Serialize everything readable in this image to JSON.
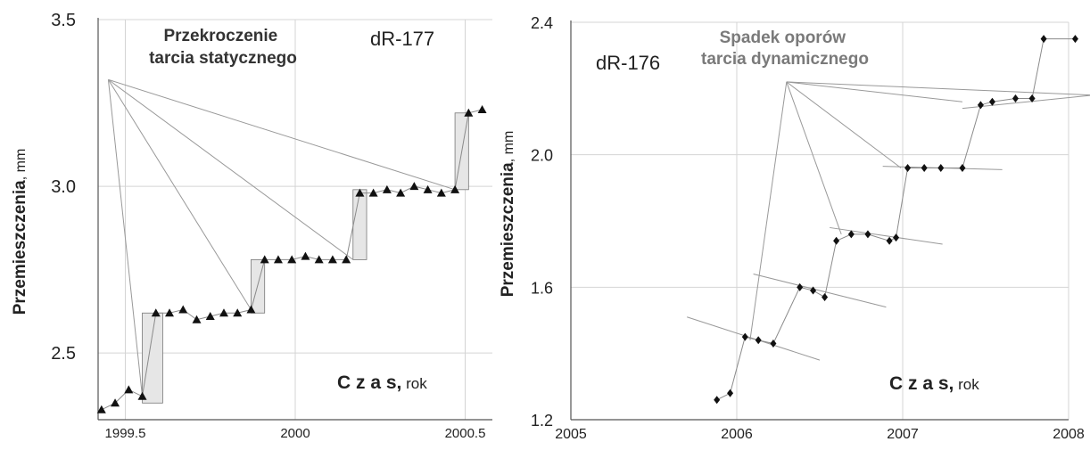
{
  "colors": {
    "grid": "#d4d4d4",
    "series": "#8a8a8a",
    "marker": "#111111",
    "band_fill": "#e6e6e6",
    "annotation_left": "#333333",
    "annotation_right": "#7a7a7a",
    "text": "#222222"
  },
  "chart_data": [
    {
      "type": "scatter",
      "id": "dR-177",
      "label": "dR-177",
      "ylabel_main": "Przemieszczenia",
      "ylabel_unit": ", mm",
      "xlabel_main": "C z a s,",
      "xlabel_unit": " rok",
      "annotation": [
        "Przekroczenie",
        "tarcia statycznego"
      ],
      "marker": "triangle",
      "xlim": [
        1999.42,
        2000.58
      ],
      "ylim": [
        2.3,
        3.5
      ],
      "xticks": [
        1999.5,
        2000,
        2000.5
      ],
      "xtick_labels": [
        "1999.5",
        "2000",
        "2000.5"
      ],
      "yticks": [
        2.5,
        3.0,
        3.5
      ],
      "ytick_labels": [
        "2.5",
        "3.0",
        "3.5"
      ],
      "grid": true,
      "annotation_origin": [
        1999.45,
        3.32
      ],
      "series": [
        {
          "x": [
            1999.43,
            1999.47,
            1999.51,
            1999.55,
            1999.59,
            1999.63,
            1999.67,
            1999.71,
            1999.75,
            1999.79,
            1999.83,
            1999.87,
            1999.91,
            1999.95,
            1999.99,
            2000.03,
            2000.07,
            2000.11,
            2000.15,
            2000.19,
            2000.23,
            2000.27,
            2000.31,
            2000.35,
            2000.39,
            2000.43,
            2000.47,
            2000.51,
            2000.55
          ],
          "y": [
            2.33,
            2.35,
            2.39,
            2.37,
            2.62,
            2.62,
            2.63,
            2.6,
            2.61,
            2.62,
            2.62,
            2.63,
            2.78,
            2.78,
            2.78,
            2.79,
            2.78,
            2.78,
            2.78,
            2.98,
            2.98,
            2.99,
            2.98,
            3.0,
            2.99,
            2.98,
            2.99,
            3.22,
            3.23
          ]
        }
      ],
      "bands": [
        {
          "x": [
            1999.55,
            1999.61
          ],
          "y": [
            2.35,
            2.62
          ]
        },
        {
          "x": [
            1999.87,
            1999.91
          ],
          "y": [
            2.62,
            2.78
          ]
        },
        {
          "x": [
            2000.17,
            2000.21
          ],
          "y": [
            2.78,
            2.99
          ]
        },
        {
          "x": [
            2000.47,
            2000.51
          ],
          "y": [
            2.99,
            3.22
          ]
        }
      ],
      "annotation_targets": [
        [
          1999.55,
          2.37
        ],
        [
          1999.87,
          2.63
        ],
        [
          2000.17,
          2.78
        ],
        [
          2000.47,
          2.99
        ]
      ]
    },
    {
      "type": "scatter",
      "id": "dR-176",
      "label": "dR-176",
      "ylabel_main": "Przemieszczenia",
      "ylabel_unit": ", mm",
      "xlabel_main": "C z a s,",
      "xlabel_unit": " rok",
      "annotation": [
        "Spadek oporów",
        "tarcia dynamicznego"
      ],
      "marker": "diamond",
      "xlim": [
        2005,
        2008
      ],
      "ylim": [
        1.2,
        2.4
      ],
      "xticks": [
        2005,
        2006,
        2007,
        2008
      ],
      "xtick_labels": [
        "2005",
        "2006",
        "2007",
        "2008"
      ],
      "yticks": [
        1.2,
        1.6,
        2.0,
        2.4
      ],
      "ytick_labels": [
        "1.2",
        "1.6",
        "2.0",
        "2.4"
      ],
      "grid": true,
      "annotation_origin": [
        2006.3,
        2.22
      ],
      "series": [
        {
          "x": [
            2005.88,
            2005.96,
            2006.05,
            2006.13,
            2006.22,
            2006.38,
            2006.46,
            2006.53,
            2006.6,
            2006.69,
            2006.79,
            2006.92,
            2006.96,
            2007.03,
            2007.13,
            2007.23,
            2007.36,
            2007.47,
            2007.54,
            2007.68,
            2007.78,
            2007.85,
            2008.04
          ],
          "y": [
            1.26,
            1.28,
            1.45,
            1.44,
            1.43,
            1.6,
            1.59,
            1.57,
            1.74,
            1.76,
            1.76,
            1.74,
            1.75,
            1.96,
            1.96,
            1.96,
            1.96,
            2.15,
            2.16,
            2.17,
            2.17,
            2.35,
            2.35
          ]
        }
      ],
      "trend_segments": [
        {
          "x": [
            2005.7,
            2006.5
          ],
          "y": [
            1.51,
            1.38
          ]
        },
        {
          "x": [
            2006.1,
            2006.9
          ],
          "y": [
            1.64,
            1.54
          ]
        },
        {
          "x": [
            2006.56,
            2007.24
          ],
          "y": [
            1.78,
            1.73
          ]
        },
        {
          "x": [
            2006.88,
            2007.6
          ],
          "y": [
            1.965,
            1.955
          ]
        },
        {
          "x": [
            2007.36,
            2008.15
          ],
          "y": [
            2.14,
            2.18
          ]
        }
      ],
      "annotation_targets": [
        [
          2006.08,
          1.44
        ],
        [
          2006.63,
          1.76
        ],
        [
          2006.99,
          1.96
        ],
        [
          2007.36,
          2.16
        ],
        [
          2008.14,
          2.18
        ]
      ]
    }
  ]
}
